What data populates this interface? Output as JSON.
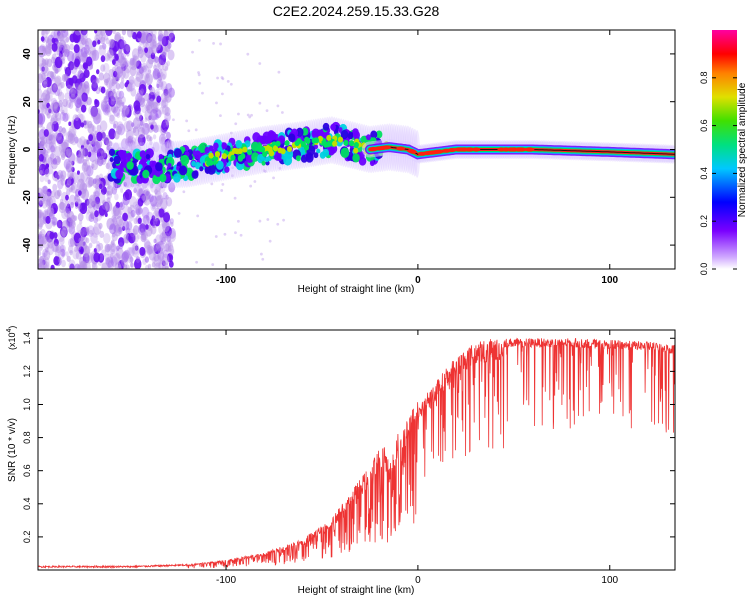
{
  "title": "C2E2.2024.259.15.33.G28",
  "chart_data": [
    {
      "type": "heatmap",
      "xlabel": "Height of straight line (km)",
      "ylabel": "Frequency (Hz)",
      "xlim": [
        -198,
        134
      ],
      "ylim": [
        -50,
        50
      ],
      "xticks": [
        -100,
        0,
        100
      ],
      "yticks": [
        -40,
        -20,
        0,
        20,
        40
      ],
      "colorbar": {
        "label": "Normalized spectral amplitude",
        "range": [
          0,
          1
        ],
        "ticks": [
          0.0,
          0.2,
          0.4,
          0.6,
          0.8
        ]
      },
      "colors": {
        "noise": "#b58ee8",
        "strong": "#6a00ff",
        "core": "#ff1010",
        "green": "#00e060",
        "cyan": "#00d0e0"
      },
      "description_points": {
        "ridge_x": [
          -150,
          -120,
          -100,
          -80,
          -60,
          -45,
          -35,
          -25,
          -15,
          -5,
          0,
          20,
          60,
          100,
          134
        ],
        "ridge_freq": [
          -7,
          -6,
          -3,
          0,
          2,
          4,
          2,
          0,
          1,
          0,
          -2,
          0,
          0,
          -1,
          -2
        ]
      }
    },
    {
      "type": "line",
      "xlabel": "Height of straight line (km)",
      "ylabel": "SNR (10 * v/v)",
      "y_multiplier": "x10^4",
      "xlim": [
        -198,
        134
      ],
      "ylim": [
        0,
        1.45
      ],
      "xticks": [
        -100,
        0,
        100
      ],
      "yticks": [
        0.2,
        0.4,
        0.6,
        0.8,
        1.0,
        1.2,
        1.4
      ],
      "color": "#ee3333",
      "envelope": {
        "x": [
          -198,
          -150,
          -120,
          -100,
          -80,
          -60,
          -45,
          -35,
          -25,
          -18,
          -15,
          -10,
          0,
          10,
          20,
          30,
          40,
          60,
          80,
          100,
          120,
          134
        ],
        "y": [
          0.02,
          0.02,
          0.03,
          0.06,
          0.1,
          0.18,
          0.3,
          0.45,
          0.6,
          0.75,
          0.62,
          0.8,
          1.0,
          1.15,
          1.3,
          1.38,
          1.4,
          1.4,
          1.4,
          1.39,
          1.38,
          1.36
        ]
      }
    }
  ]
}
